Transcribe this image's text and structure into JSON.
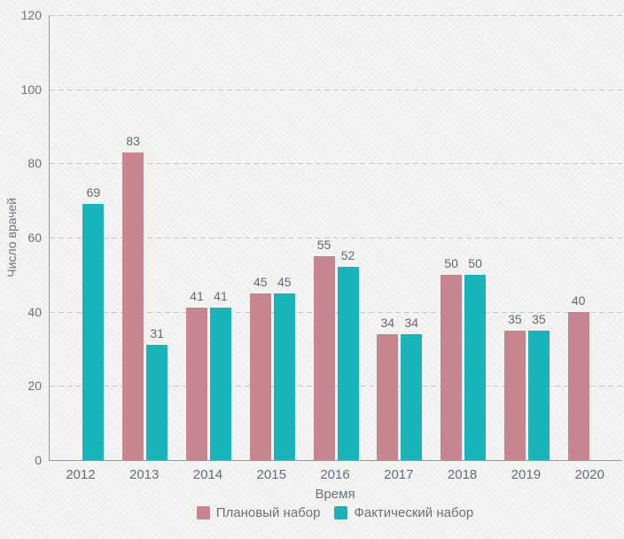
{
  "chart_data": {
    "type": "bar",
    "title": "",
    "xlabel": "Время",
    "ylabel": "Число врачей",
    "categories": [
      "2012",
      "2013",
      "2014",
      "2015",
      "2016",
      "2017",
      "2018",
      "2019",
      "2020"
    ],
    "series": [
      {
        "name": "Плановый набор",
        "color": "#c6858f",
        "values": [
          null,
          83,
          41,
          45,
          55,
          34,
          50,
          35,
          40
        ]
      },
      {
        "name": "Фактический набор",
        "color": "#18b4ba",
        "values": [
          69,
          31,
          41,
          45,
          52,
          34,
          50,
          35,
          null
        ]
      }
    ],
    "ylim": [
      0,
      120
    ],
    "yticks": [
      0,
      20,
      40,
      60,
      80,
      100,
      120
    ],
    "grid": "horizontal-dashed",
    "legend_position": "bottom"
  },
  "colors": {
    "background": "#f1f1ef",
    "axis_line": "#96989a",
    "gridline": "#c9c9c7",
    "tick_text": "#68737d",
    "value_label_text": "#5f6a72",
    "axis_title_text": "#68747e",
    "legend_text": "#6b727a"
  }
}
